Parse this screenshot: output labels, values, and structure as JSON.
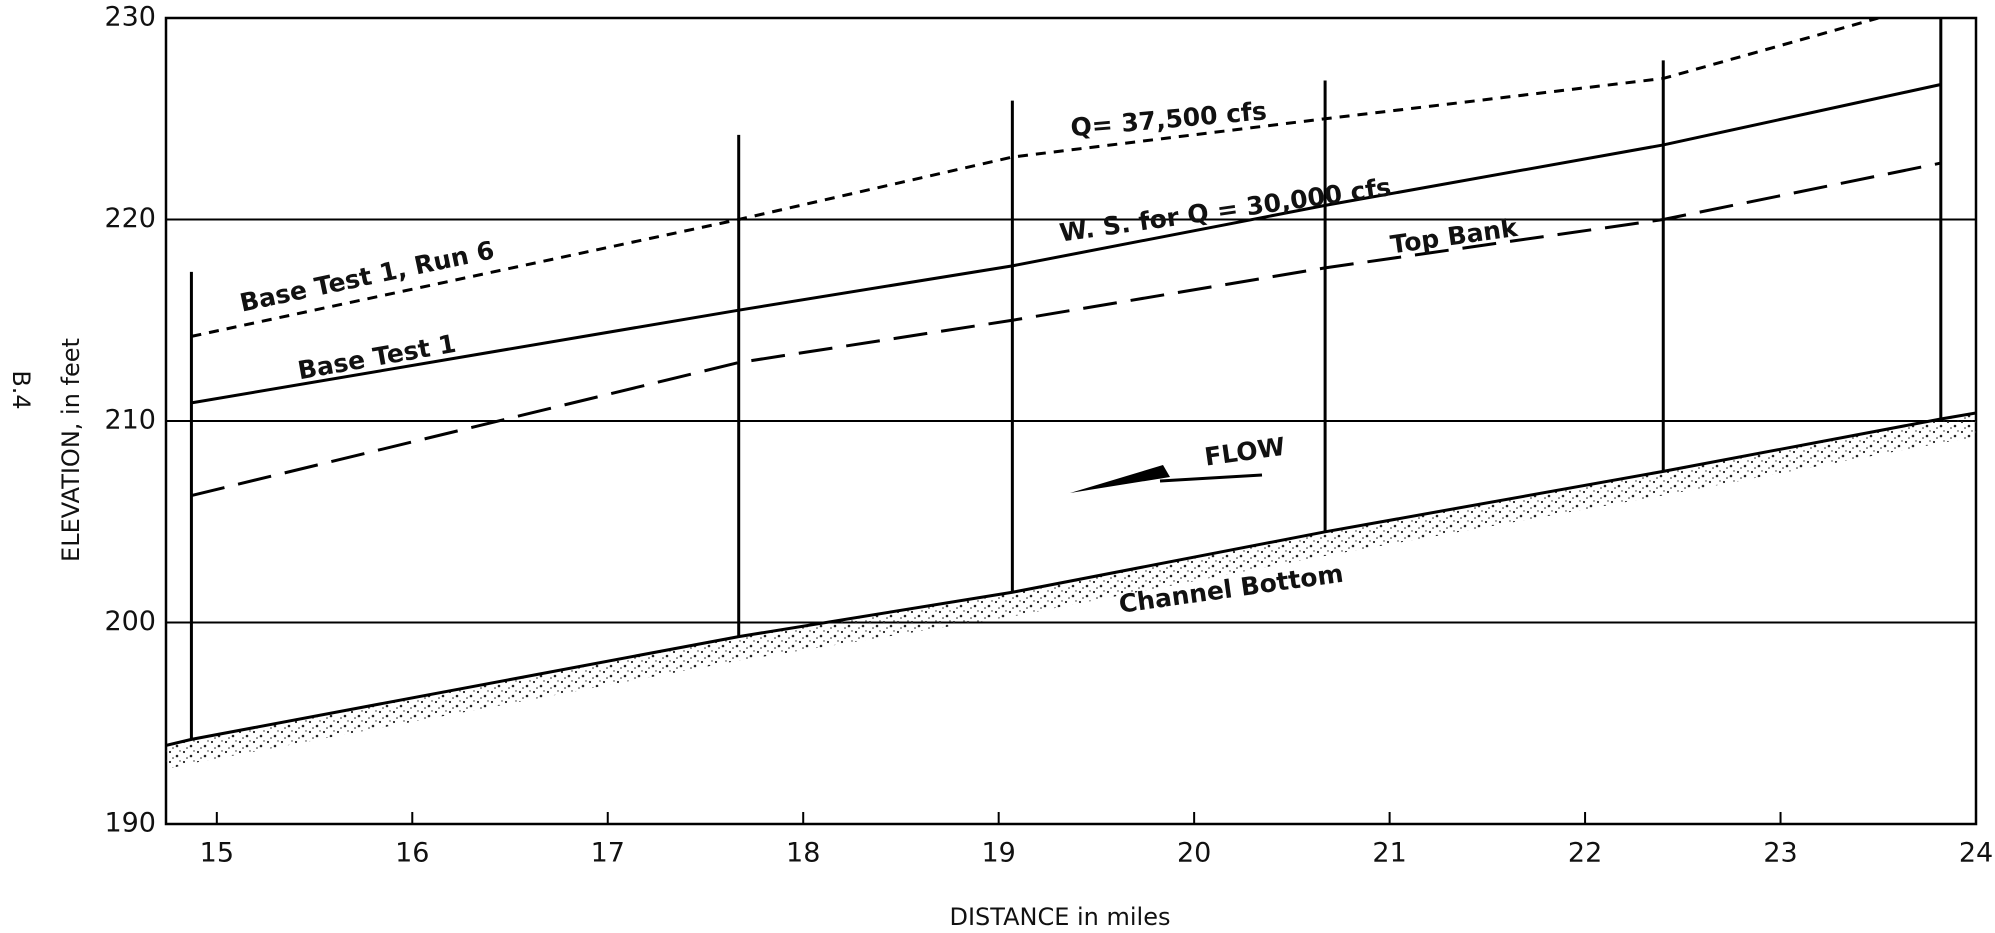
{
  "chart_data": {
    "type": "line",
    "side_label": "B.4",
    "xlabel": "DISTANCE in miles",
    "ylabel": "ELEVATION, in feet",
    "xlim": [
      14.74,
      24
    ],
    "xticks": [
      15,
      16,
      17,
      18,
      19,
      20,
      21,
      22,
      23,
      24
    ],
    "ylim": [
      190,
      230
    ],
    "yticks": [
      190,
      200,
      210,
      220,
      230
    ],
    "grid": true,
    "series": [
      {
        "name": "Base Test 1, Run 6",
        "color": "#000000",
        "style": "short-dash",
        "x": [
          14.87,
          17.67,
          19.07,
          20.67,
          22.4,
          23.5
        ],
        "values": [
          214.2,
          220,
          223.1,
          225,
          227,
          230
        ]
      },
      {
        "name": "Base Test 1",
        "color": "#000000",
        "style": "solid",
        "x": [
          14.87,
          17.67,
          19.07,
          20.67,
          22.4,
          23.82
        ],
        "values": [
          210.9,
          215.5,
          217.7,
          220.7,
          223.7,
          226.7
        ]
      },
      {
        "name": "Top Bank",
        "color": "#000000",
        "style": "long-dash",
        "x": [
          14.87,
          17.67,
          19.07,
          20.67,
          22.4,
          23.82
        ],
        "values": [
          206.3,
          212.9,
          215,
          217.6,
          220,
          222.8
        ]
      },
      {
        "name": "Channel Bottom",
        "color": "#000000",
        "style": "solid",
        "x": [
          14.74,
          14.87,
          17.67,
          19.07,
          20.67,
          22.4,
          23.82,
          24
        ],
        "values": [
          193.9,
          194.2,
          199.3,
          201.5,
          204.5,
          207.5,
          210.1,
          210.4
        ]
      }
    ],
    "stations": [
      {
        "x": 14.87,
        "bottom": 194.2,
        "top": 217.4
      },
      {
        "x": 17.67,
        "bottom": 199.3,
        "top": 224.2
      },
      {
        "x": 19.07,
        "bottom": 201.5,
        "top": 225.9
      },
      {
        "x": 20.67,
        "bottom": 204.5,
        "top": 226.9
      },
      {
        "x": 22.4,
        "bottom": 207.5,
        "top": 227.9
      },
      {
        "x": 23.82,
        "bottom": 210.1,
        "top": 230
      }
    ],
    "annotations": [
      "Q= 37,500 cfs",
      "W. S. for Q = 30,000 cfs",
      "FLOW"
    ]
  }
}
